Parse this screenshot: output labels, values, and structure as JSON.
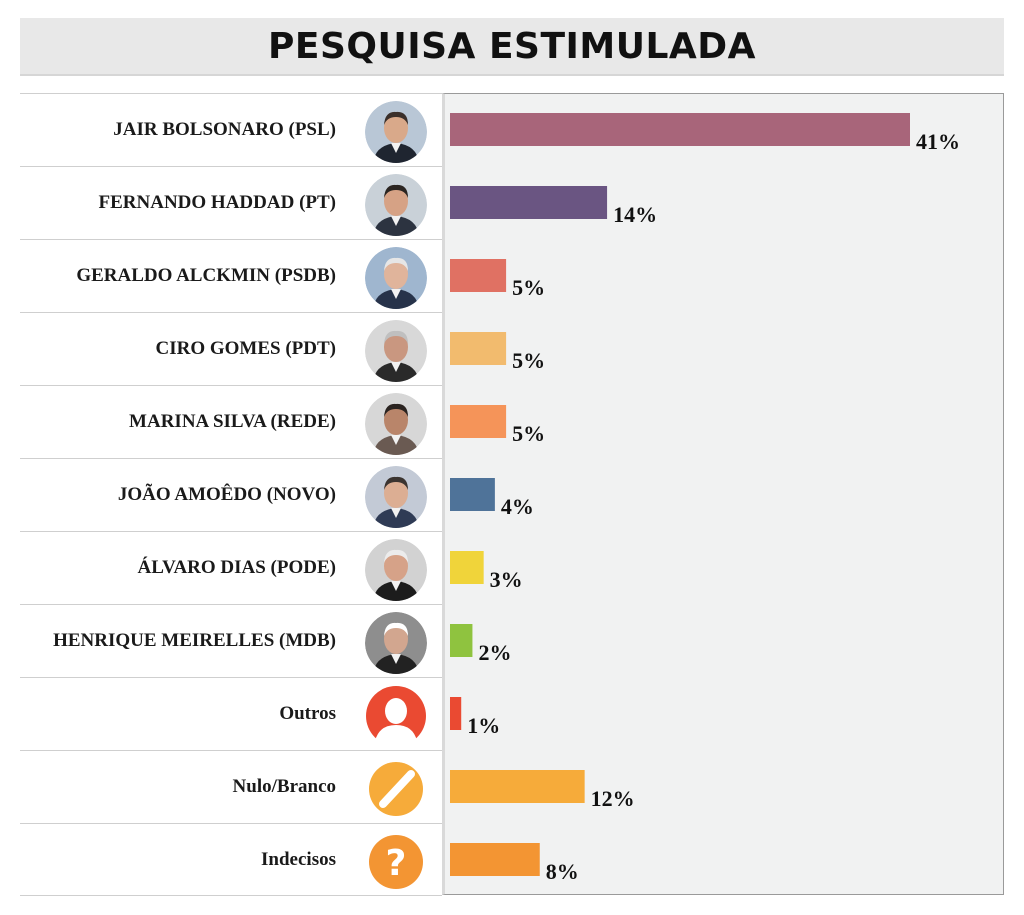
{
  "title": "PESQUISA ESTIMULADA",
  "chart_data": {
    "type": "bar",
    "orientation": "horizontal",
    "title": "PESQUISA ESTIMULADA",
    "categories": [
      "JAIR BOLSONARO (PSL)",
      "FERNANDO HADDAD (PT)",
      "GERALDO ALCKMIN (PSDB)",
      "CIRO GOMES (PDT)",
      "MARINA SILVA (REDE)",
      "JOÃO AMOÊDO (NOVO)",
      "ÁLVARO DIAS (PODE)",
      "HENRIQUE MEIRELLES (MDB)",
      "Outros",
      "Nulo/Branco",
      "Indecisos"
    ],
    "values": [
      41,
      14,
      5,
      5,
      5,
      4,
      3,
      2,
      1,
      12,
      8
    ],
    "value_labels": [
      "41%",
      "14%",
      "5%",
      "5%",
      "5%",
      "4%",
      "3%",
      "2%",
      "1%",
      "12%",
      "8%"
    ],
    "colors": [
      "#a8657a",
      "#6a5582",
      "#e07163",
      "#f2bb6e",
      "#f59459",
      "#4f7399",
      "#f0d43a",
      "#8fc33f",
      "#ea4a32",
      "#f6ab3a",
      "#f39533"
    ],
    "icons": [
      "photo-bolsonaro",
      "photo-haddad",
      "photo-alckmin",
      "photo-ciro",
      "photo-marina",
      "photo-amoedo",
      "photo-alvaro",
      "photo-meirelles",
      "person-icon",
      "null-vote-icon",
      "question-icon"
    ],
    "xlim": [
      0,
      41
    ],
    "grid": false,
    "legend": "none"
  }
}
